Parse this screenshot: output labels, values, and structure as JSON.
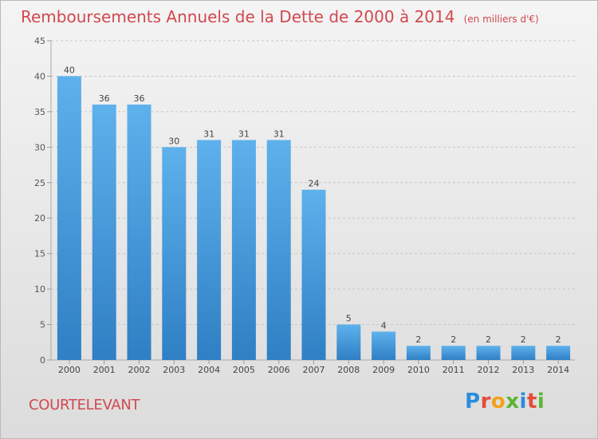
{
  "title": {
    "main": "Remboursements Annuels de la Dette de 2000 à 2014",
    "sub": "(en milliers d'€)"
  },
  "commune": "COURTELEVANT",
  "logo": {
    "text": "Proxiti",
    "letter_colors": [
      "#2a8ddd",
      "#e64b3b",
      "#f2a21a",
      "#5bb533",
      "#2a8ddd",
      "#e64b3b",
      "#5bb533"
    ]
  },
  "colors": {
    "title": "#d1484f",
    "bar_top": "#5eb1ec",
    "bar_bottom": "#2f7fc4",
    "grid": "#c6c6c6"
  },
  "chart_data": {
    "type": "bar",
    "categories": [
      "2000",
      "2001",
      "2002",
      "2003",
      "2004",
      "2005",
      "2006",
      "2007",
      "2008",
      "2009",
      "2010",
      "2011",
      "2012",
      "2013",
      "2014"
    ],
    "values": [
      40,
      36,
      36,
      30,
      31,
      31,
      31,
      24,
      5,
      4,
      2,
      2,
      2,
      2,
      2
    ],
    "data_labels": [
      "40",
      "36",
      "36",
      "30",
      "31",
      "31",
      "31",
      "24",
      "5",
      "4",
      "2",
      "2",
      "2",
      "2",
      "2"
    ],
    "yticks": [
      "0",
      "5",
      "10",
      "15",
      "20",
      "25",
      "30",
      "35",
      "40",
      "45"
    ],
    "ylim": [
      0,
      45
    ],
    "grid": true
  }
}
